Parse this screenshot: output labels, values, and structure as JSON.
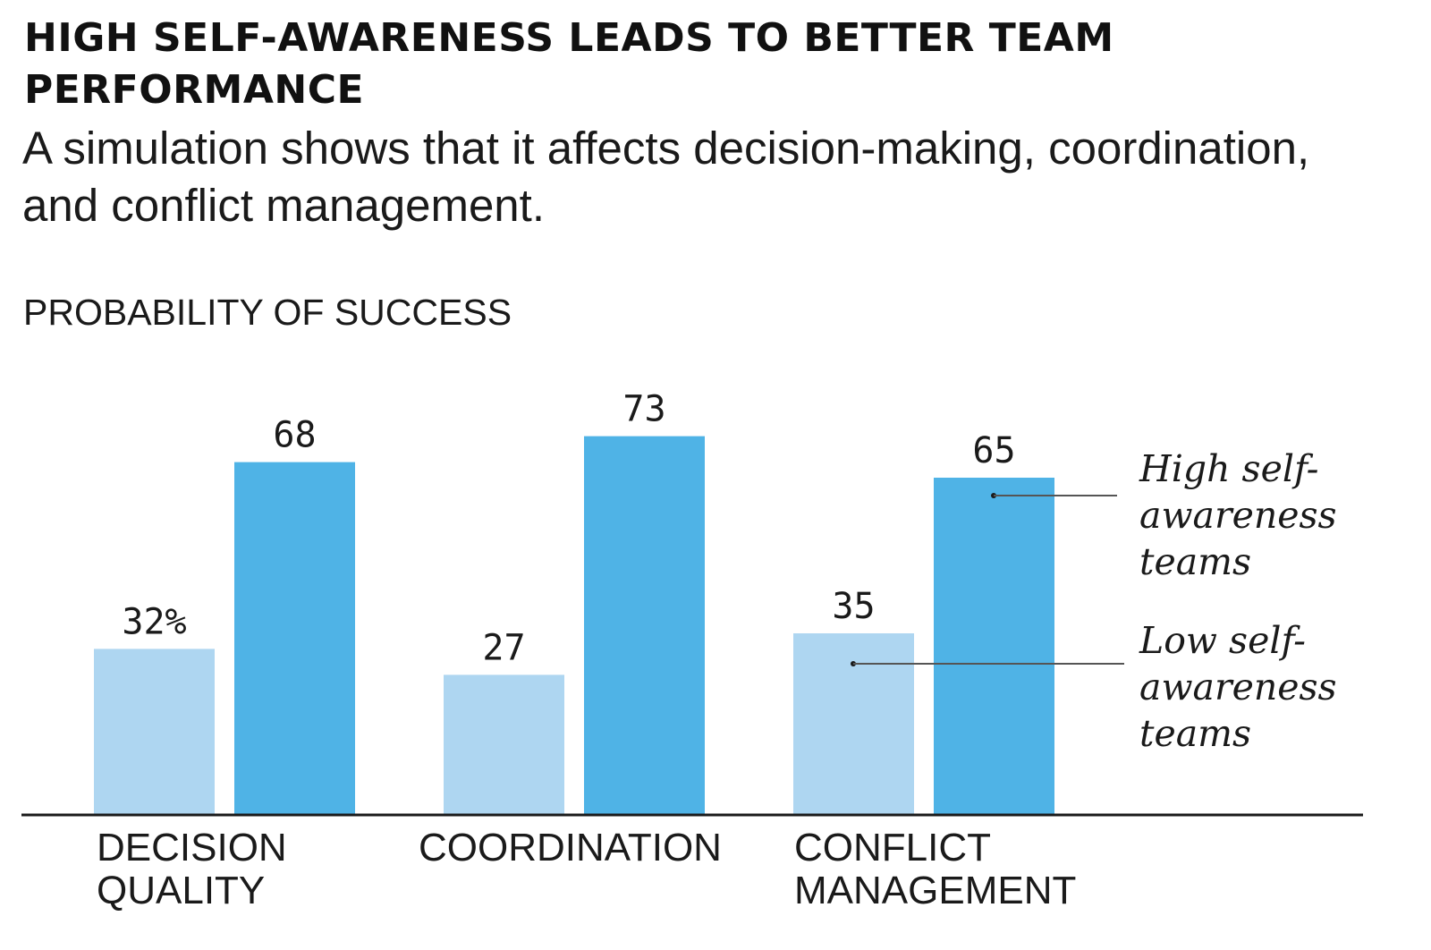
{
  "chart_data": {
    "type": "bar",
    "title": "HIGH SELF-AWARENESS LEADS TO BETTER TEAM PERFORMANCE",
    "subtitle": "A simulation shows that it affects decision-making, coordination, and conflict management.",
    "ylabel": "PROBABILITY OF SUCCESS",
    "xlabel": "",
    "categories": [
      [
        "DECISION",
        "QUALITY"
      ],
      [
        "COORDINATION"
      ],
      [
        "CONFLICT",
        "MANAGEMENT"
      ]
    ],
    "series": [
      {
        "name": "Low self-awareness teams",
        "legend_lines": [
          "Low self-",
          "awareness",
          "teams"
        ],
        "color": "#aed6f1",
        "values": [
          32,
          27,
          35
        ],
        "labels": [
          "32%",
          "27",
          "35"
        ]
      },
      {
        "name": "High self-awareness teams",
        "legend_lines": [
          "High self-",
          "awareness",
          "teams"
        ],
        "color": "#4fb3e6",
        "values": [
          68,
          73,
          65
        ],
        "labels": [
          "68",
          "73",
          "65"
        ]
      }
    ],
    "ylim": [
      0,
      100
    ],
    "grid": false,
    "legend": "right"
  }
}
